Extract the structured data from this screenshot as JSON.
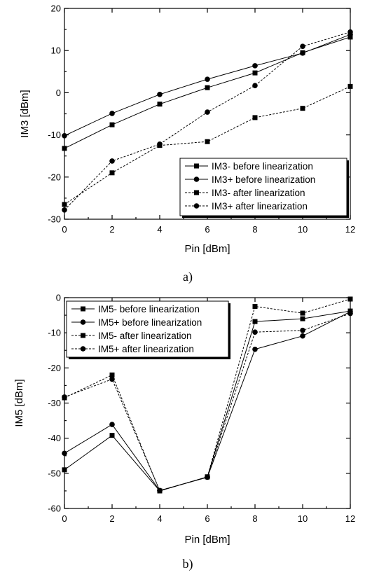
{
  "chart_data": [
    {
      "type": "line",
      "caption": "a)",
      "xlabel": "Pin [dBm]",
      "ylabel": "IM3 [dBm]",
      "xlim": [
        0,
        12
      ],
      "ylim": [
        -30,
        20
      ],
      "xticks": [
        0,
        2,
        4,
        6,
        8,
        10,
        12
      ],
      "yticks": [
        -30,
        -20,
        -10,
        0,
        10,
        20
      ],
      "grid": false,
      "legend_position": "bottom-right",
      "x": [
        0,
        2,
        4,
        6,
        8,
        10,
        12
      ],
      "series": [
        {
          "name": "IM3- before linearization",
          "marker": "square",
          "dash": "solid",
          "values": [
            -13.2,
            -7.6,
            -2.7,
            1.2,
            4.7,
            9.5,
            13.2
          ]
        },
        {
          "name": "IM3+ before linearization",
          "marker": "circle",
          "dash": "solid",
          "values": [
            -10.2,
            -4.9,
            -0.4,
            3.2,
            6.4,
            9.4,
            13.8
          ]
        },
        {
          "name": "IM3- after linearization",
          "marker": "square",
          "dash": "dashed",
          "values": [
            -26.5,
            -19.0,
            -12.5,
            -11.6,
            -5.9,
            -3.7,
            1.5
          ]
        },
        {
          "name": "IM3+ after linearization",
          "marker": "circle",
          "dash": "dashed",
          "values": [
            -27.8,
            -16.2,
            -12.2,
            -4.6,
            1.7,
            11.0,
            14.4
          ]
        }
      ]
    },
    {
      "type": "line",
      "caption": "b)",
      "xlabel": "Pin [dBm]",
      "ylabel": "IM5 [dBm]",
      "xlim": [
        0,
        12
      ],
      "ylim": [
        -60,
        0
      ],
      "xticks": [
        0,
        2,
        4,
        6,
        8,
        10,
        12
      ],
      "yticks": [
        -60,
        -50,
        -40,
        -30,
        -20,
        -10,
        0
      ],
      "grid": false,
      "legend_position": "top-left",
      "x": [
        0,
        2,
        4,
        6,
        8,
        10,
        12
      ],
      "series": [
        {
          "name": "IM5- before linearization",
          "marker": "square",
          "dash": "solid",
          "values": [
            -49.0,
            -39.2,
            -55.0,
            -51.0,
            -6.8,
            -6.0,
            -3.8
          ]
        },
        {
          "name": "IM5+ before linearization",
          "marker": "circle",
          "dash": "solid",
          "values": [
            -44.3,
            -36.1,
            -54.9,
            -51.1,
            -14.7,
            -10.9,
            -4.0
          ]
        },
        {
          "name": "IM5- after linearization",
          "marker": "square",
          "dash": "dashed",
          "values": [
            -28.5,
            -22.0,
            -55.0,
            -51.0,
            -2.5,
            -4.4,
            -0.4
          ]
        },
        {
          "name": "IM5+ after linearization",
          "marker": "circle",
          "dash": "dashed",
          "values": [
            -28.3,
            -23.2,
            -54.9,
            -51.1,
            -9.8,
            -9.3,
            -4.5
          ]
        }
      ]
    }
  ]
}
